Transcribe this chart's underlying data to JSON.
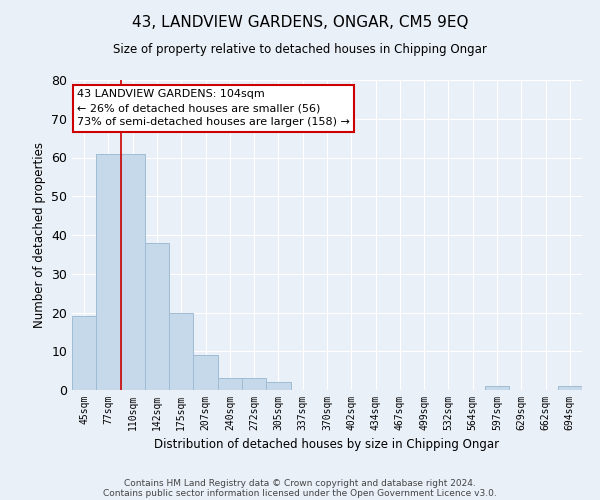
{
  "title": "43, LANDVIEW GARDENS, ONGAR, CM5 9EQ",
  "subtitle": "Size of property relative to detached houses in Chipping Ongar",
  "xlabel": "Distribution of detached houses by size in Chipping Ongar",
  "ylabel": "Number of detached properties",
  "bar_color": "#c6d9ea",
  "bar_edge_color": "#a0bcd4",
  "background_color": "#eaf0f8",
  "grid_color": "#ffffff",
  "vline_color": "#cc0000",
  "vline_x_idx": 2,
  "categories": [
    "45sqm",
    "77sqm",
    "110sqm",
    "142sqm",
    "175sqm",
    "207sqm",
    "240sqm",
    "272sqm",
    "305sqm",
    "337sqm",
    "370sqm",
    "402sqm",
    "434sqm",
    "467sqm",
    "499sqm",
    "532sqm",
    "564sqm",
    "597sqm",
    "629sqm",
    "662sqm",
    "694sqm"
  ],
  "values": [
    19,
    61,
    61,
    38,
    20,
    9,
    3,
    3,
    2,
    0,
    0,
    0,
    0,
    0,
    0,
    0,
    0,
    1,
    0,
    0,
    1
  ],
  "ylim": [
    0,
    80
  ],
  "yticks": [
    0,
    10,
    20,
    30,
    40,
    50,
    60,
    70,
    80
  ],
  "annotation_text": "43 LANDVIEW GARDENS: 104sqm\n← 26% of detached houses are smaller (56)\n73% of semi-detached houses are larger (158) →",
  "annotation_box_color": "#ffffff",
  "annotation_box_edge": "#cc0000",
  "footer1": "Contains HM Land Registry data © Crown copyright and database right 2024.",
  "footer2": "Contains public sector information licensed under the Open Government Licence v3.0."
}
